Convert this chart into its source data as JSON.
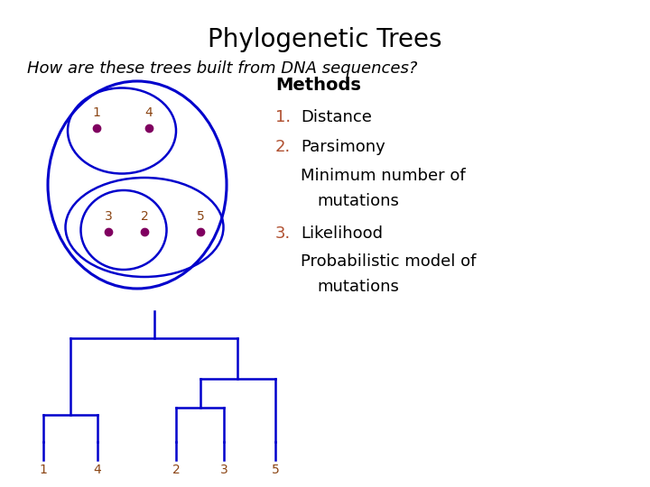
{
  "title": "Phylogenetic Trees",
  "subtitle": "How are these trees built from DNA sequences?",
  "title_fontsize": 20,
  "subtitle_fontsize": 13,
  "bg_color": "#ffffff",
  "blue_color": "#0000cc",
  "dot_color": "#800060",
  "num_color": "#b05030",
  "methods_title": "Methods",
  "text_fontsize": 13,
  "leaf_label_color": "#8B4513"
}
